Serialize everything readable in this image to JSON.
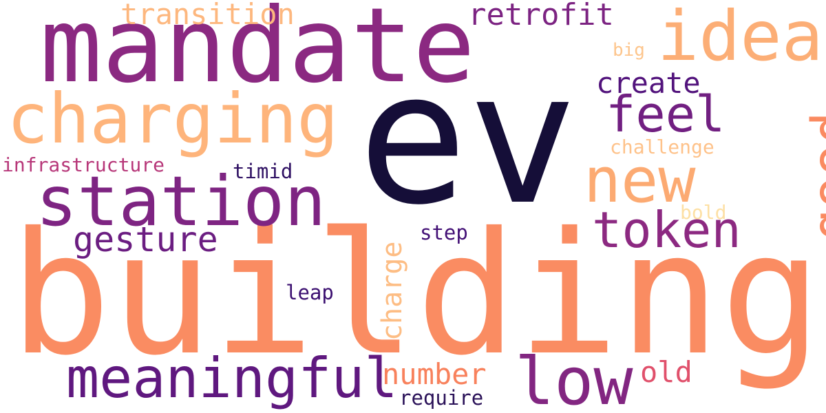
{
  "words": {
    "building": {
      "text": "building",
      "color": "#fa8c62"
    },
    "ev": {
      "text": "ev",
      "color": "#150e38"
    },
    "mandate": {
      "text": "mandate",
      "color": "#8b2981"
    },
    "charging": {
      "text": "charging",
      "color": "#feb47b"
    },
    "station": {
      "text": "station",
      "color": "#7e2482"
    },
    "meaningful": {
      "text": "meaningful",
      "color": "#5f187f"
    },
    "low": {
      "text": "low",
      "color": "#822681"
    },
    "new": {
      "text": "new",
      "color": "#fcaa72"
    },
    "idea": {
      "text": "idea",
      "color": "#fcae76"
    },
    "token": {
      "text": "token",
      "color": "#8c2981"
    },
    "feel": {
      "text": "feel",
      "color": "#711f81"
    },
    "good": {
      "text": "good",
      "color": "#fa8a60"
    },
    "gesture": {
      "text": "gesture",
      "color": "#6b1d81"
    },
    "transition": {
      "text": "transition",
      "color": "#fdb77e"
    },
    "retrofit": {
      "text": "retrofit",
      "color": "#7c2382"
    },
    "create": {
      "text": "create",
      "color": "#52137c"
    },
    "number": {
      "text": "number",
      "color": "#f8815c"
    },
    "old": {
      "text": "old",
      "color": "#e0506b"
    },
    "charge": {
      "text": "charge",
      "color": "#fdbd84"
    },
    "infrastructure": {
      "text": "infrastructure",
      "color": "#b73779"
    },
    "challenge": {
      "text": "challenge",
      "color": "#fec28a"
    },
    "timid": {
      "text": "timid",
      "color": "#2f1163"
    },
    "step": {
      "text": "step",
      "color": "#420f75"
    },
    "leap": {
      "text": "leap",
      "color": "#3b0f70"
    },
    "require": {
      "text": "require",
      "color": "#2a1158"
    },
    "big": {
      "text": "big",
      "color": "#fdc58c"
    },
    "bold": {
      "text": "bold",
      "color": "#fde0a4"
    }
  }
}
